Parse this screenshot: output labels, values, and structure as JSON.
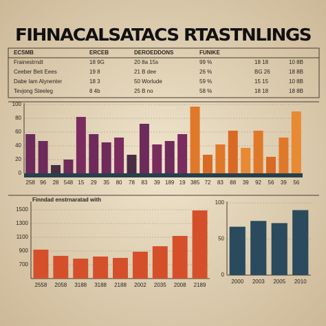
{
  "title": "FIHNACALSATACS RTASTNLINGS",
  "table": {
    "header": [
      "ECSMB",
      "ERCEB",
      "DEROEDDONS",
      "FUNIKE"
    ],
    "rows": [
      [
        "Frainestrndt",
        "18 9G",
        "20 8a 15s",
        "99 %",
        "18 18",
        "10 8B"
      ],
      [
        "Ceeber Beit Eees",
        "19 8",
        "21 B dee",
        "26 %",
        "BG 26",
        "18 8B"
      ],
      [
        "Dabe Iam Alynenter",
        "18 3",
        "50 Worlude",
        "59 %",
        "15 15",
        "10 8B"
      ],
      [
        "Tevjong Steeleg",
        "8 4b",
        "25 B no",
        "58 %",
        "18 18",
        "18 8B"
      ]
    ]
  },
  "chart_data": [
    {
      "type": "bar",
      "categories": [
        "258",
        "96",
        "28",
        "548",
        "15",
        "29",
        "35",
        "80",
        "78",
        "83",
        "39",
        "189",
        "19",
        "385",
        "72",
        "83",
        "88",
        "39",
        "92",
        "56",
        "39",
        "56"
      ],
      "values": [
        57,
        47,
        12,
        20,
        82,
        57,
        45,
        52,
        27,
        72,
        42,
        47,
        57,
        97,
        27,
        42,
        62,
        37,
        62,
        24,
        52,
        90
      ],
      "colors": [
        "#6e2a5a",
        "#6e2a5a",
        "#4a2c44",
        "#6e2a5a",
        "#7a2c5e",
        "#6e2a5a",
        "#6e2a5a",
        "#7a2c5e",
        "#4a2c44",
        "#6e2a5a",
        "#7a2c5e",
        "#6e2a5a",
        "#7a2c5e",
        "#e0782a",
        "#d86a24",
        "#e0782a",
        "#d86a24",
        "#e88a34",
        "#e0782a",
        "#d86a24",
        "#e0782a",
        "#e88a34"
      ],
      "ylim": [
        0,
        100
      ],
      "yticks": [
        0,
        20,
        40,
        60,
        80,
        100
      ]
    },
    {
      "type": "bar",
      "title": "Finndad enstrnaratad with",
      "categories": [
        "2558",
        "2058",
        "3188",
        "3188",
        "2188",
        "2002",
        "2035",
        "2008",
        "2189"
      ],
      "values": [
        920,
        830,
        790,
        820,
        800,
        890,
        970,
        1120,
        1490
      ],
      "colors": [
        "#d5502a",
        "#d5502a",
        "#d5502a",
        "#d5502a",
        "#d5502a",
        "#d5502a",
        "#d5502a",
        "#d5502a",
        "#d5502a"
      ],
      "ylim": [
        500,
        1600
      ],
      "yticks": [
        700,
        900,
        1100,
        1300,
        1500
      ]
    },
    {
      "type": "bar",
      "categories": [
        "2000",
        "2003",
        "2005",
        "2010"
      ],
      "values": [
        67,
        75,
        72,
        90
      ],
      "colors": [
        "#2a4a5e",
        "#2a4a5e",
        "#2a4a5e",
        "#2a4a5e"
      ],
      "ylim": [
        0,
        100
      ],
      "yticks": [
        0,
        50,
        100
      ]
    }
  ]
}
